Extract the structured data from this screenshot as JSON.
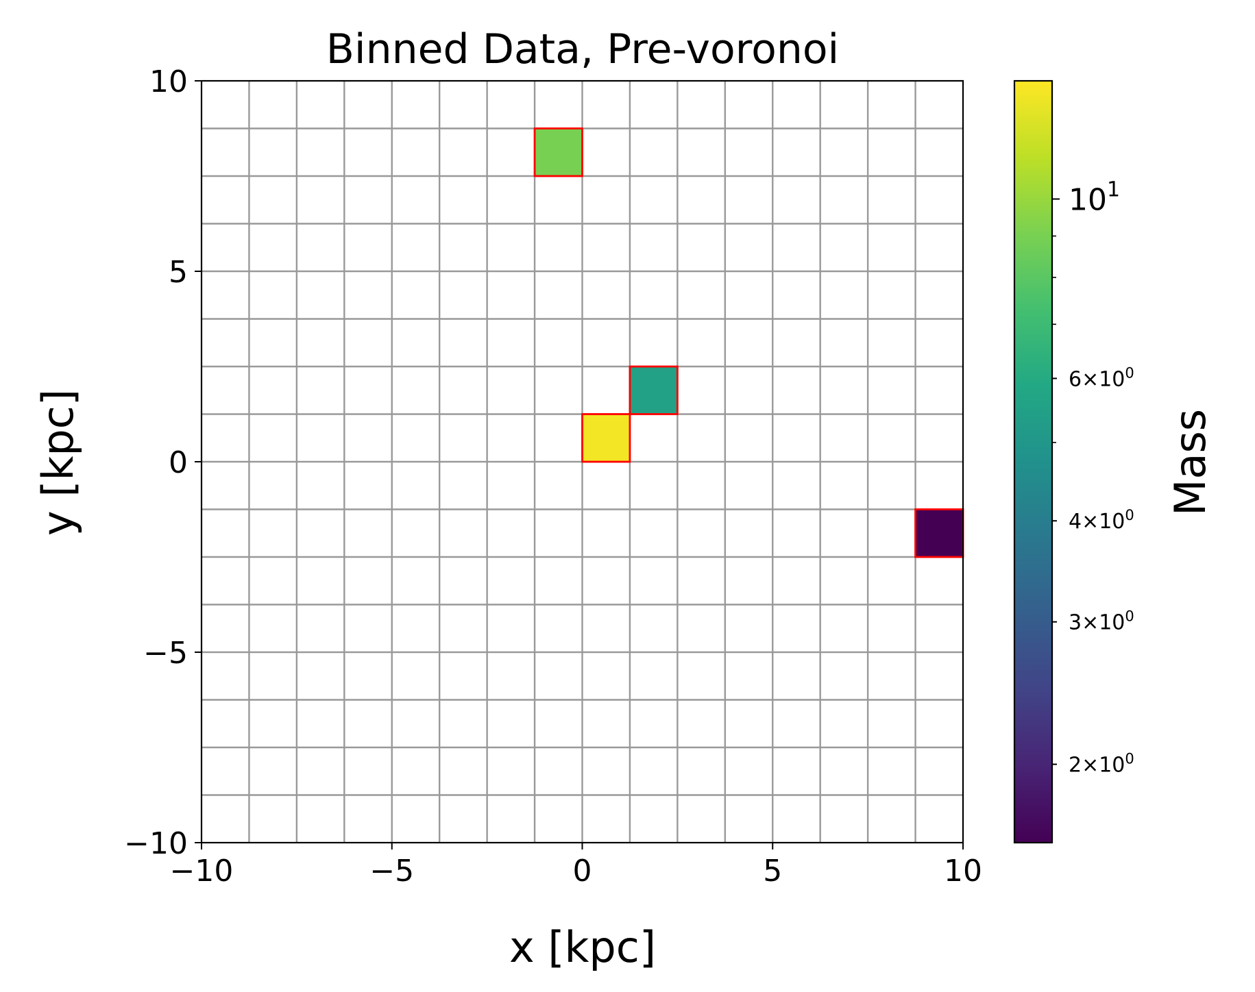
{
  "chart_data": {
    "type": "heatmap",
    "title": "Binned Data, Pre-voronoi",
    "xlabel": "x [kpc]",
    "ylabel": "y [kpc]",
    "colorbar_label": "Mass",
    "colormap": "viridis",
    "colorbar_scale": "log",
    "colorbar_range": [
      1.6,
      14.0
    ],
    "xlim": [
      -10,
      10
    ],
    "ylim": [
      -10,
      10
    ],
    "bins_x": 16,
    "bins_y": 16,
    "grid": true,
    "grid_color": "#999999",
    "highlight_edge_color": "#ff0000",
    "x_ticks": [
      {
        "value": -10,
        "label": "−10"
      },
      {
        "value": -5,
        "label": "−5"
      },
      {
        "value": 0,
        "label": "0"
      },
      {
        "value": 5,
        "label": "5"
      },
      {
        "value": 10,
        "label": "10"
      }
    ],
    "y_ticks": [
      {
        "value": -10,
        "label": "−10"
      },
      {
        "value": -5,
        "label": "−5"
      },
      {
        "value": 0,
        "label": "0"
      },
      {
        "value": 5,
        "label": "5"
      },
      {
        "value": 10,
        "label": "10"
      }
    ],
    "colorbar_ticks": [
      {
        "value": 10,
        "label": "10",
        "exp": "1",
        "major": true
      },
      {
        "value": 6,
        "label": "6×10",
        "exp": "0",
        "major": false
      },
      {
        "value": 4,
        "label": "4×10",
        "exp": "0",
        "major": false
      },
      {
        "value": 3,
        "label": "3×10",
        "exp": "0",
        "major": false
      },
      {
        "value": 2,
        "label": "2×10",
        "exp": "0",
        "major": false
      }
    ],
    "colorbar_minor_ticks": [
      5,
      7,
      8,
      9
    ],
    "cells": [
      {
        "x0": -1.25,
        "x1": 0.0,
        "y0": 7.5,
        "y1": 8.75,
        "value": 9.0
      },
      {
        "x0": 1.25,
        "x1": 2.5,
        "y0": 1.25,
        "y1": 2.5,
        "value": 5.5
      },
      {
        "x0": 0.0,
        "x1": 1.25,
        "y0": 0.0,
        "y1": 1.25,
        "value": 13.5
      },
      {
        "x0": 8.75,
        "x1": 10.0,
        "y0": -2.5,
        "y1": -1.25,
        "value": 1.6
      }
    ]
  }
}
